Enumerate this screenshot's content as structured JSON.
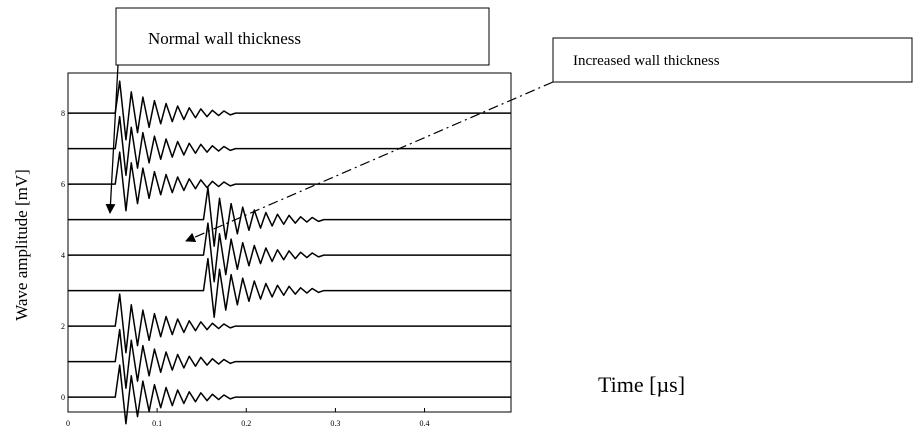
{
  "chart_data": {
    "type": "line",
    "x_label": "Time [µs]",
    "y_label": "Wave amplitude [mV]",
    "annotations": [
      "Normal wall thickness",
      "Increased wall thickness"
    ],
    "xlim": [
      0,
      0.497
    ],
    "ylim": [
      -0.42,
      9.13
    ],
    "xticks": [
      0,
      0.1,
      0.2,
      0.3,
      0.4
    ],
    "yticks": [
      0,
      2,
      4,
      6,
      8
    ],
    "color": "#000000",
    "series": [
      {
        "x": [
          0,
          0.053,
          0.058,
          0.065,
          0.071,
          0.078,
          0.084,
          0.091,
          0.097,
          0.104,
          0.11,
          0.117,
          0.123,
          0.13,
          0.136,
          0.143,
          0.149,
          0.156,
          0.162,
          0.169,
          0.175,
          0.182,
          0.188,
          0.497
        ],
        "values": [
          0,
          0,
          0.9,
          -0.75,
          0.6,
          -0.55,
          0.45,
          -0.4,
          0.35,
          -0.3,
          0.27,
          -0.24,
          0.2,
          -0.18,
          0.15,
          -0.13,
          0.12,
          -0.1,
          0.08,
          -0.07,
          0.06,
          -0.05,
          0,
          0
        ]
      },
      {
        "x": [
          0,
          0.053,
          0.058,
          0.065,
          0.071,
          0.078,
          0.084,
          0.091,
          0.097,
          0.104,
          0.11,
          0.117,
          0.123,
          0.13,
          0.136,
          0.143,
          0.149,
          0.156,
          0.162,
          0.169,
          0.175,
          0.182,
          0.188,
          0.497
        ],
        "values": [
          1,
          1,
          1.9,
          0.25,
          1.6,
          0.45,
          1.45,
          0.6,
          1.35,
          0.7,
          1.27,
          0.76,
          1.2,
          0.82,
          1.15,
          0.87,
          1.12,
          0.9,
          1.08,
          0.93,
          1.06,
          0.95,
          1,
          1
        ]
      },
      {
        "x": [
          0,
          0.053,
          0.058,
          0.065,
          0.071,
          0.078,
          0.084,
          0.091,
          0.097,
          0.104,
          0.11,
          0.117,
          0.123,
          0.13,
          0.136,
          0.143,
          0.149,
          0.156,
          0.162,
          0.169,
          0.175,
          0.182,
          0.188,
          0.497
        ],
        "values": [
          2,
          2,
          2.9,
          1.25,
          2.6,
          1.45,
          2.45,
          1.6,
          2.35,
          1.7,
          2.27,
          1.76,
          2.2,
          1.82,
          2.15,
          1.87,
          2.12,
          1.9,
          2.08,
          1.93,
          2.06,
          1.95,
          2,
          2
        ]
      },
      {
        "x": [
          0,
          0.152,
          0.157,
          0.164,
          0.17,
          0.177,
          0.183,
          0.19,
          0.196,
          0.203,
          0.209,
          0.216,
          0.222,
          0.229,
          0.235,
          0.242,
          0.248,
          0.255,
          0.261,
          0.268,
          0.274,
          0.281,
          0.287,
          0.497
        ],
        "values": [
          3,
          3,
          3.9,
          2.25,
          3.6,
          2.45,
          3.45,
          2.6,
          3.35,
          2.7,
          3.27,
          2.76,
          3.2,
          2.82,
          3.15,
          2.87,
          3.12,
          2.9,
          3.08,
          2.93,
          3.06,
          2.95,
          3,
          3
        ]
      },
      {
        "x": [
          0,
          0.152,
          0.157,
          0.164,
          0.17,
          0.177,
          0.183,
          0.19,
          0.196,
          0.203,
          0.209,
          0.216,
          0.222,
          0.229,
          0.235,
          0.242,
          0.248,
          0.255,
          0.261,
          0.268,
          0.274,
          0.281,
          0.287,
          0.497
        ],
        "values": [
          4,
          4,
          4.9,
          3.25,
          4.6,
          3.45,
          4.45,
          3.6,
          4.35,
          3.7,
          4.27,
          3.76,
          4.2,
          3.82,
          4.15,
          3.87,
          4.12,
          3.9,
          4.08,
          3.93,
          4.06,
          3.95,
          4,
          4
        ]
      },
      {
        "x": [
          0,
          0.152,
          0.157,
          0.164,
          0.17,
          0.177,
          0.183,
          0.19,
          0.196,
          0.203,
          0.209,
          0.216,
          0.222,
          0.229,
          0.235,
          0.242,
          0.248,
          0.255,
          0.261,
          0.268,
          0.274,
          0.281,
          0.287,
          0.497
        ],
        "values": [
          5,
          5,
          5.9,
          4.25,
          5.6,
          4.45,
          5.45,
          4.6,
          5.35,
          4.7,
          5.27,
          4.76,
          5.2,
          4.82,
          5.15,
          4.87,
          5.12,
          4.9,
          5.08,
          4.93,
          5.06,
          4.95,
          5,
          5
        ]
      },
      {
        "x": [
          0,
          0.053,
          0.058,
          0.065,
          0.071,
          0.078,
          0.084,
          0.091,
          0.097,
          0.104,
          0.11,
          0.117,
          0.123,
          0.13,
          0.136,
          0.143,
          0.149,
          0.156,
          0.162,
          0.169,
          0.175,
          0.182,
          0.188,
          0.497
        ],
        "values": [
          6,
          6,
          6.9,
          5.25,
          6.6,
          5.45,
          6.45,
          5.6,
          6.35,
          5.7,
          6.27,
          5.76,
          6.2,
          5.82,
          6.15,
          5.87,
          6.12,
          5.9,
          6.08,
          5.93,
          6.06,
          5.95,
          6,
          6
        ]
      },
      {
        "x": [
          0,
          0.053,
          0.058,
          0.065,
          0.071,
          0.078,
          0.084,
          0.091,
          0.097,
          0.104,
          0.11,
          0.117,
          0.123,
          0.13,
          0.136,
          0.143,
          0.149,
          0.156,
          0.162,
          0.169,
          0.175,
          0.182,
          0.188,
          0.497
        ],
        "values": [
          7,
          7,
          7.9,
          6.25,
          7.6,
          6.45,
          7.45,
          6.6,
          7.35,
          6.7,
          7.27,
          6.76,
          7.2,
          6.82,
          7.15,
          6.87,
          7.12,
          6.9,
          7.08,
          6.93,
          7.06,
          6.95,
          7,
          7
        ]
      },
      {
        "x": [
          0,
          0.053,
          0.058,
          0.065,
          0.071,
          0.078,
          0.084,
          0.091,
          0.097,
          0.104,
          0.11,
          0.117,
          0.123,
          0.13,
          0.136,
          0.143,
          0.149,
          0.156,
          0.162,
          0.169,
          0.175,
          0.182,
          0.188,
          0.497
        ],
        "values": [
          8,
          8,
          8.9,
          7.25,
          8.6,
          7.45,
          8.45,
          7.6,
          8.35,
          7.7,
          8.27,
          7.76,
          8.2,
          7.82,
          8.15,
          7.87,
          8.12,
          7.9,
          8.08,
          7.93,
          8.06,
          7.95,
          8,
          8
        ]
      }
    ]
  }
}
